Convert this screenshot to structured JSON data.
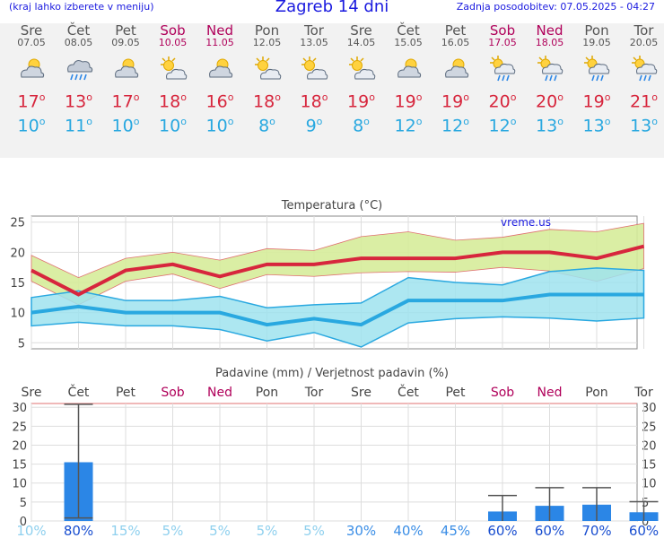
{
  "header": {
    "left_note": "(kraj lahko izberete v meniju)",
    "title": "Zagreb 14 dni",
    "updated": "Zadnja posodobitev: 07.05.2025 - 04:27"
  },
  "days": [
    {
      "name": "Sre",
      "date": "07.05",
      "weekend": false,
      "icon": "partly-cloudy-icon",
      "tmax": "17",
      "tmin": "10"
    },
    {
      "name": "Čet",
      "date": "08.05",
      "weekend": false,
      "icon": "rain-cloud-icon",
      "tmax": "13",
      "tmin": "11"
    },
    {
      "name": "Pet",
      "date": "09.05",
      "weekend": false,
      "icon": "partly-cloudy-icon",
      "tmax": "17",
      "tmin": "10"
    },
    {
      "name": "Sob",
      "date": "10.05",
      "weekend": true,
      "icon": "sun-cloud-icon",
      "tmax": "18",
      "tmin": "10"
    },
    {
      "name": "Ned",
      "date": "11.05",
      "weekend": true,
      "icon": "partly-cloudy-icon",
      "tmax": "16",
      "tmin": "10"
    },
    {
      "name": "Pon",
      "date": "12.05",
      "weekend": false,
      "icon": "sun-cloud-icon",
      "tmax": "18",
      "tmin": "8"
    },
    {
      "name": "Tor",
      "date": "13.05",
      "weekend": false,
      "icon": "sun-cloud-icon",
      "tmax": "18",
      "tmin": "9"
    },
    {
      "name": "Sre",
      "date": "14.05",
      "weekend": false,
      "icon": "sun-cloud-icon",
      "tmax": "19",
      "tmin": "8"
    },
    {
      "name": "Čet",
      "date": "15.05",
      "weekend": false,
      "icon": "partly-cloudy-icon",
      "tmax": "19",
      "tmin": "12"
    },
    {
      "name": "Pet",
      "date": "16.05",
      "weekend": false,
      "icon": "partly-cloudy-icon",
      "tmax": "19",
      "tmin": "12"
    },
    {
      "name": "Sob",
      "date": "17.05",
      "weekend": true,
      "icon": "sun-rain-icon",
      "tmax": "20",
      "tmin": "12"
    },
    {
      "name": "Ned",
      "date": "18.05",
      "weekend": true,
      "icon": "sun-rain-icon",
      "tmax": "20",
      "tmin": "13"
    },
    {
      "name": "Pon",
      "date": "19.05",
      "weekend": false,
      "icon": "sun-rain-icon",
      "tmax": "19",
      "tmin": "13"
    },
    {
      "name": "Tor",
      "date": "20.05",
      "weekend": false,
      "icon": "sun-rain-icon",
      "tmax": "21",
      "tmin": "13"
    }
  ],
  "colors": {
    "max": "#d7263d",
    "min": "#29a8e0",
    "max_band": "#d6ec9a",
    "min_band": "#9fe3ee",
    "bars": "#2b86e6",
    "weekend": "#b0005a"
  },
  "chart_data": [
    {
      "type": "line",
      "title": "Temperatura (°C)",
      "watermark": "vreme.us",
      "ylim": [
        4,
        26
      ],
      "yticks": [
        5,
        10,
        15,
        20,
        25
      ],
      "series": [
        {
          "role": "max",
          "values": [
            17,
            13,
            17,
            18,
            16,
            18,
            18,
            19,
            19,
            19,
            20,
            20,
            19,
            21
          ]
        },
        {
          "role": "max_upper",
          "values": [
            19.5,
            15.8,
            19,
            20,
            18.7,
            20.6,
            20.3,
            22.6,
            23.4,
            22,
            22.5,
            23.8,
            23.4,
            24.8
          ]
        },
        {
          "role": "max_lower",
          "values": [
            15.2,
            11.3,
            15.2,
            16.4,
            14,
            16.3,
            16,
            16.6,
            16.8,
            16.7,
            17.5,
            16.9,
            15.2,
            17.3
          ]
        },
        {
          "role": "min",
          "values": [
            10,
            11,
            10,
            10,
            10,
            8,
            9,
            8,
            12,
            12,
            12,
            13,
            13,
            13
          ]
        },
        {
          "role": "min_upper",
          "values": [
            12.5,
            13.6,
            12,
            12,
            12.7,
            10.8,
            11.3,
            11.6,
            15.8,
            15,
            14.6,
            16.8,
            17.4,
            17
          ]
        },
        {
          "role": "min_lower",
          "values": [
            7.8,
            8.4,
            7.8,
            7.8,
            7.2,
            5.3,
            6.7,
            4.3,
            8.3,
            9,
            9.3,
            9.1,
            8.6,
            9.1
          ]
        }
      ]
    },
    {
      "type": "bar",
      "title": "Padavine (mm) / Verjetnost padavin (%)",
      "ylim": [
        0,
        31
      ],
      "yticks": [
        0,
        5,
        10,
        15,
        20,
        25,
        30
      ],
      "categories": [
        "Sre",
        "Čet",
        "Pet",
        "Sob",
        "Ned",
        "Pon",
        "Tor",
        "Sre",
        "Čet",
        "Pet",
        "Sob",
        "Ned",
        "Pon",
        "Tor"
      ],
      "values": [
        0,
        15.5,
        0,
        0,
        0,
        0,
        0,
        0,
        0,
        0,
        2.5,
        4,
        4.3,
        2.3
      ],
      "err_high": [
        0,
        30.8,
        0,
        0,
        0,
        0,
        0,
        0,
        0,
        0,
        6.7,
        8.8,
        8.8,
        5.1
      ],
      "err_low": [
        0,
        0.8,
        0,
        0,
        0,
        0,
        0,
        0,
        0,
        0,
        0,
        0,
        0,
        0
      ],
      "probability": [
        "10%",
        "80%",
        "15%",
        "5%",
        "5%",
        "5%",
        "5%",
        "30%",
        "40%",
        "45%",
        "60%",
        "60%",
        "70%",
        "60%"
      ]
    }
  ]
}
